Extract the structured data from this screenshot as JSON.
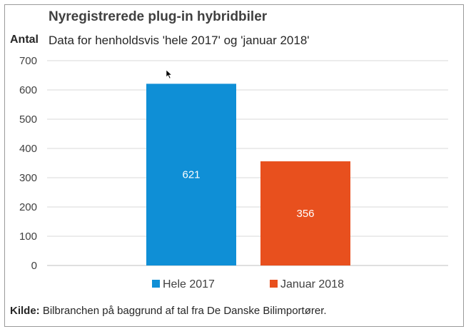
{
  "chart_data": {
    "type": "bar",
    "title": "Nyregistrerede plug-in hybridbiler",
    "subtitle": "Data for henholdsvis 'hele 2017' og 'januar 2018'",
    "ylabel": "Antal",
    "xlabel": "",
    "ylim": [
      0,
      700
    ],
    "yticks": [
      0,
      100,
      200,
      300,
      400,
      500,
      600,
      700
    ],
    "grid": true,
    "legend_position": "bottom",
    "series": [
      {
        "name": "Hele 2017",
        "value": 621,
        "color": "#0f8fd6"
      },
      {
        "name": "Januar 2018",
        "value": 356,
        "color": "#e8501e"
      }
    ]
  },
  "source": {
    "label": "Kilde:",
    "text": "Bilbranchen på baggrund af tal fra De Danske Bilimportører."
  }
}
